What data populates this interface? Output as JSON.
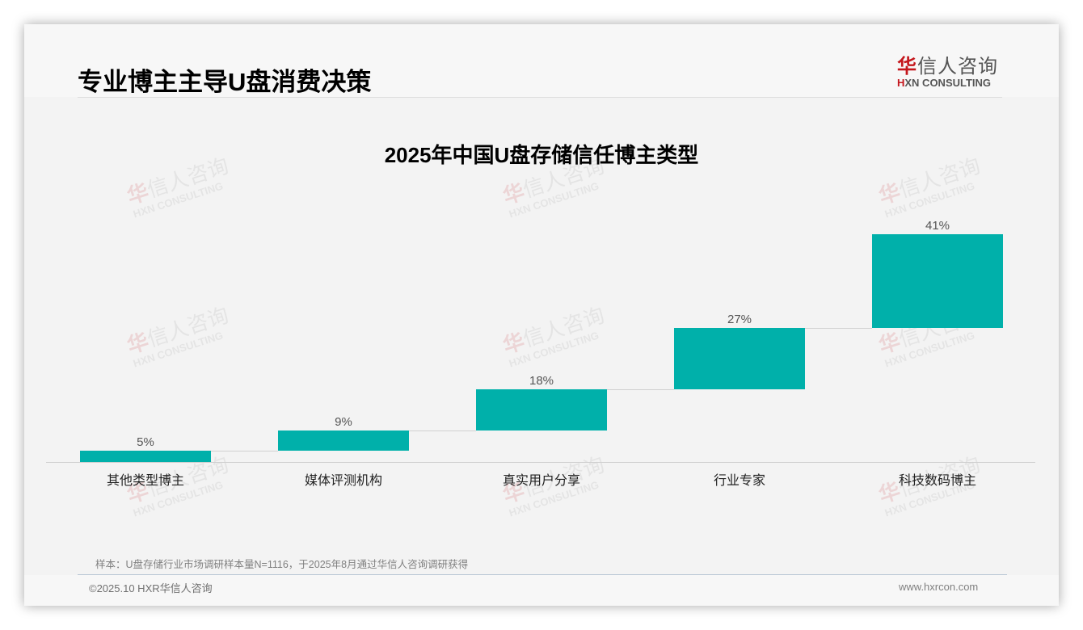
{
  "header": {
    "title": "专业博主主导U盘消费决策",
    "logo": {
      "cn_first": "华",
      "cn_rest": "信人咨询",
      "en_first": "H",
      "en_rest": "XN CONSULTING"
    }
  },
  "watermark": {
    "cn_first": "华",
    "cn_rest": "信人咨询",
    "en": "HXN CONSULTING"
  },
  "colors": {
    "bar": "#00b0aa",
    "brand_red": "#c4161c",
    "connector": "#d0d0d0"
  },
  "chart_data": {
    "type": "bar",
    "subtype": "waterfall",
    "title": "2025年中国U盘存储信任博主类型",
    "categories": [
      "其他类型博主",
      "媒体评测机构",
      "真实用户分享",
      "行业专家",
      "科技数码博主"
    ],
    "values": [
      5,
      9,
      18,
      27,
      41
    ],
    "value_labels": [
      "5%",
      "9%",
      "18%",
      "27%",
      "41%"
    ],
    "cumulative_start": [
      0,
      5,
      14,
      32,
      59
    ],
    "cumulative_end": [
      5,
      14,
      32,
      59,
      100
    ],
    "unit": "%",
    "xlabel": "",
    "ylabel": "",
    "ylim": [
      0,
      100
    ],
    "grid": false,
    "legend": "none"
  },
  "footer": {
    "note": "样本：U盘存储行业市场调研样本量N=1116，于2025年8月通过华信人咨询调研获得",
    "copyright": "©2025.10 HXR华信人咨询",
    "website": "www.hxrcon.com"
  }
}
